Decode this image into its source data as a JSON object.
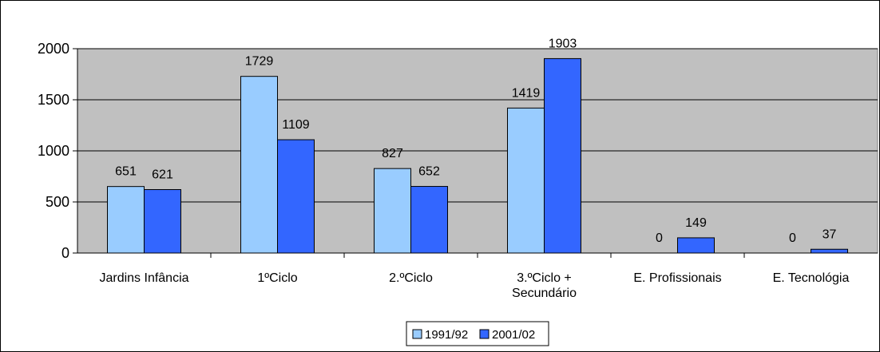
{
  "chart_data": {
    "type": "bar",
    "categories": [
      "Jardins Infância",
      "1ºCiclo",
      "2.ºCiclo",
      "3.ºCiclo + Secundário",
      "E. Profissionais",
      "E. Tecnológia"
    ],
    "category_lines": [
      [
        "Jardins Infância"
      ],
      [
        "1ºCiclo"
      ],
      [
        "2.ºCiclo"
      ],
      [
        "3.ºCiclo +",
        "Secundário"
      ],
      [
        "E. Profissionais"
      ],
      [
        "E. Tecnológia"
      ]
    ],
    "series": [
      {
        "name": "1991/92",
        "values": [
          651,
          1729,
          827,
          1419,
          0,
          0
        ]
      },
      {
        "name": "2001/02",
        "values": [
          621,
          1109,
          652,
          1903,
          149,
          37
        ]
      }
    ],
    "ylim": [
      0,
      2000
    ],
    "yticks": [
      0,
      500,
      1000,
      1500,
      2000
    ],
    "grid": true,
    "legend_position": "bottom",
    "colors": {
      "plot_background": "#c0c0c0",
      "series": [
        "#99ccff",
        "#3366ff"
      ],
      "bar_edge": "#000000",
      "grid": "#000000"
    }
  }
}
